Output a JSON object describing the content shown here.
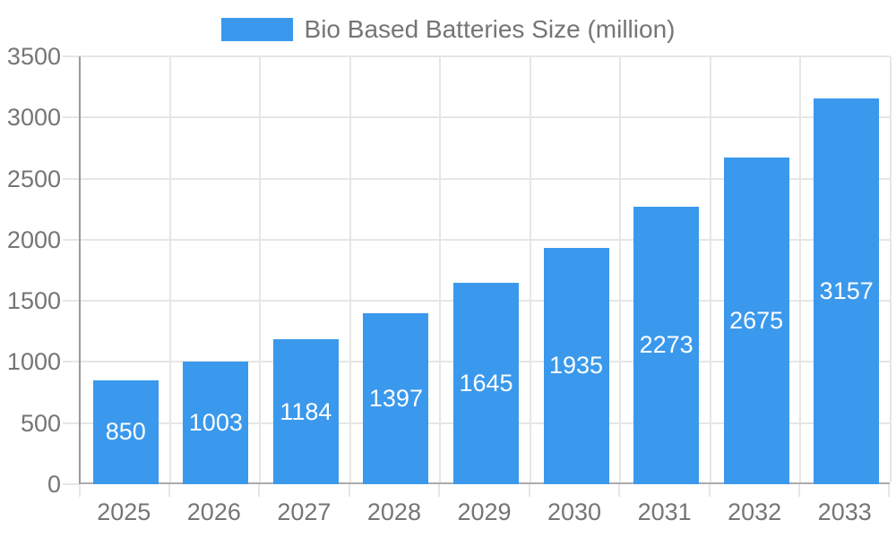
{
  "legend": {
    "label": "Bio Based Batteries Size (million)",
    "swatch_color": "#3A99EC"
  },
  "chart_data": {
    "type": "bar",
    "title": "Bio Based Batteries Size (million)",
    "series_name": "Bio Based Batteries Size (million)",
    "categories": [
      "2025",
      "2026",
      "2027",
      "2028",
      "2029",
      "2030",
      "2031",
      "2032",
      "2033"
    ],
    "values": [
      850,
      1003,
      1184,
      1397,
      1645,
      1935,
      2273,
      2675,
      3157
    ],
    "xlabel": "",
    "ylabel": "",
    "ylim": [
      0,
      3500
    ],
    "yticks": [
      0,
      500,
      1000,
      1500,
      2000,
      2500,
      3000,
      3500
    ],
    "grid": true,
    "legend_position": "top",
    "bar_color": "#3A99EC",
    "bar_label_color": "#ffffff",
    "axis_text_color": "#757575",
    "gridline_color": "#e6e6e6",
    "axis_line_color": "#9a9a9a",
    "background_color": "#ffffff"
  }
}
